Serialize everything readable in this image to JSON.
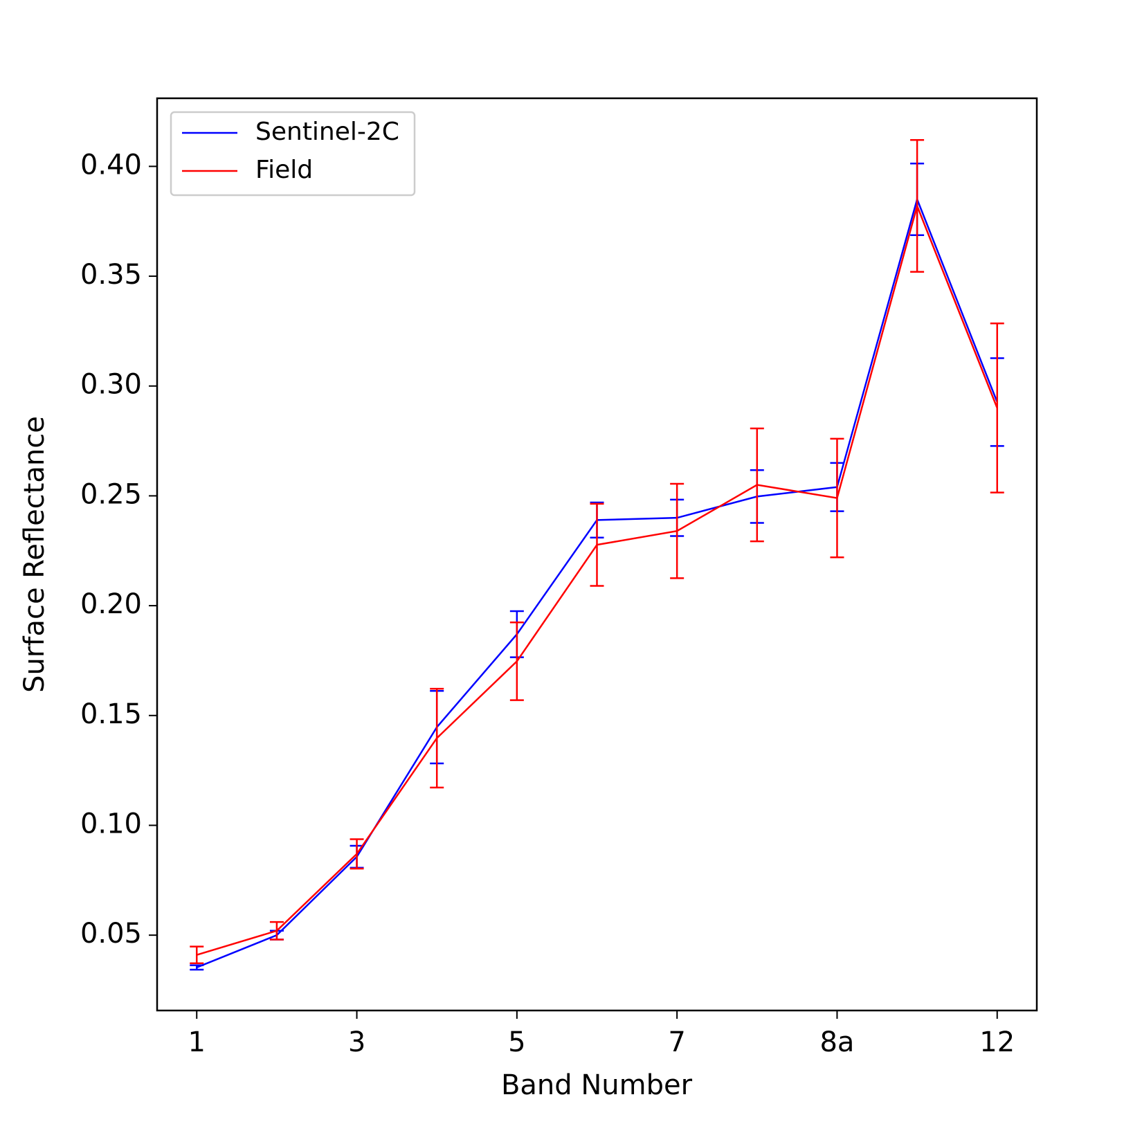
{
  "chart_data": {
    "type": "line",
    "x_label": "Band Number",
    "y_label": "Surface Reflectance",
    "categories": [
      "1",
      null,
      "3",
      null,
      "5",
      null,
      "7",
      null,
      "8a",
      null,
      "12"
    ],
    "series": [
      {
        "name": "Sentinel-2C",
        "color": "#0000ff",
        "values": [
          0.0353,
          0.05,
          0.0857,
          0.1447,
          0.187,
          0.239,
          0.24,
          0.2497,
          0.254,
          0.385,
          0.2927
        ],
        "errors": [
          0.001,
          0.002,
          0.005,
          0.0165,
          0.0105,
          0.008,
          0.0083,
          0.012,
          0.011,
          0.0163,
          0.02
        ]
      },
      {
        "name": "Field",
        "color": "#ff0000",
        "values": [
          0.041,
          0.052,
          0.087,
          0.1397,
          0.1747,
          0.2277,
          0.234,
          0.255,
          0.249,
          0.382,
          0.29
        ],
        "errors": [
          0.0038,
          0.004,
          0.0067,
          0.0225,
          0.0177,
          0.0187,
          0.0215,
          0.0257,
          0.027,
          0.03,
          0.0385
        ]
      }
    ],
    "ylim": [
      0.0157,
      0.431
    ],
    "yticks": [
      0.05,
      {
        "value": 0.1,
        "label": "0.10"
      },
      0.15,
      {
        "value": 0.2,
        "label": "0.20"
      },
      0.25,
      {
        "value": 0.3,
        "label": "0.30"
      },
      0.35,
      {
        "value": 0.4,
        "label": "0.40"
      }
    ],
    "legend": "upper left"
  }
}
